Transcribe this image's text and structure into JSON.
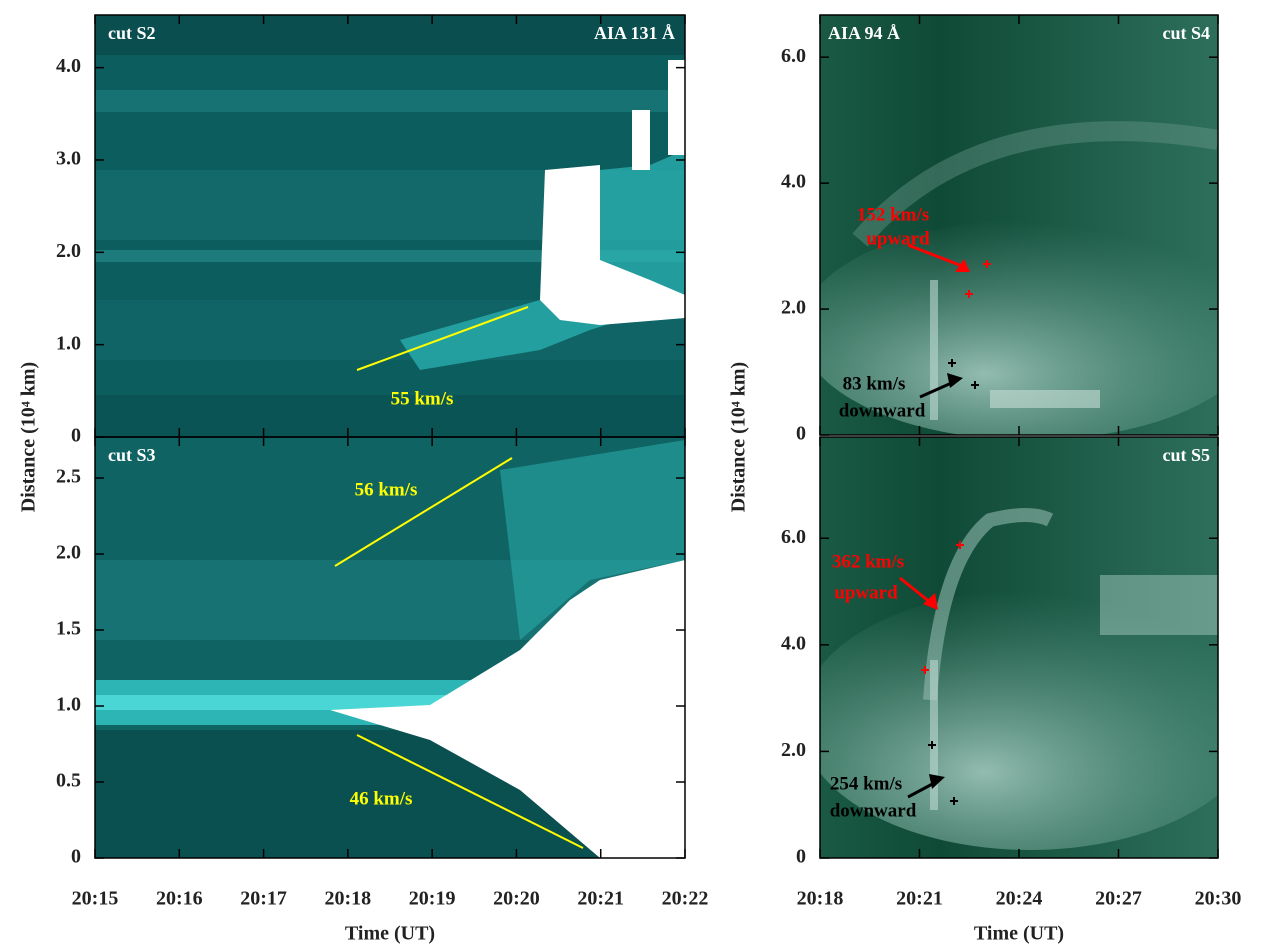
{
  "chart_data": [
    {
      "type": "heatmap",
      "panel_label": "cut S2",
      "channel": "AIA 131 Å",
      "ylim": [
        0,
        4.57
      ],
      "yticks": [
        0,
        {
          "value": 1,
          "label": "1.0"
        },
        {
          "value": 2,
          "label": "2.0"
        },
        {
          "value": 3,
          "label": "3.0"
        },
        {
          "value": 4,
          "label": "4.0"
        }
      ],
      "annotations": [
        {
          "text": "55 km/s",
          "color": "#ffff00"
        }
      ]
    },
    {
      "type": "heatmap",
      "panel_label": "cut S3",
      "y_label": "Distance (10⁴ km)",
      "x_label": "Time (UT)",
      "ylim": [
        0,
        2.77
      ],
      "yticks": [
        0,
        {
          "value": 0.5,
          "label": "0.5"
        },
        {
          "value": 1,
          "label": "1.0"
        },
        {
          "value": 1.5,
          "label": "1.5"
        },
        {
          "value": 2,
          "label": "2.0"
        },
        {
          "value": 2.5,
          "label": "2.5"
        }
      ],
      "xticks": [
        "20:15",
        "20:16",
        "20:17",
        "20:18",
        "20:19",
        "20:20",
        "20:21",
        "20:22"
      ],
      "annotations": [
        {
          "text": "56 km/s",
          "color": "#ffff00"
        },
        {
          "text": "46 km/s",
          "color": "#ffff00"
        }
      ]
    },
    {
      "type": "heatmap",
      "panel_label": "cut S4",
      "channel": "AIA 94 Å",
      "ylim": [
        0,
        6.67
      ],
      "yticks": [
        0,
        {
          "value": 2,
          "label": "2.0"
        },
        {
          "value": 4,
          "label": "4.0"
        },
        {
          "value": 6,
          "label": "6.0"
        }
      ],
      "annotations": [
        {
          "text": "152 km/s",
          "color": "#ff0000"
        },
        {
          "text": "upward",
          "color": "#ff0000"
        },
        {
          "text": "83 km/s",
          "color": "#000000"
        },
        {
          "text": "downward",
          "color": "#000000"
        }
      ]
    },
    {
      "type": "heatmap",
      "panel_label": "cut S5",
      "y_label": "Distance (10⁴ km)",
      "x_label": "Time (UT)",
      "ylim": [
        0,
        7.9
      ],
      "yticks": [
        0,
        {
          "value": 2,
          "label": "2.0"
        },
        {
          "value": 4,
          "label": "4.0"
        },
        {
          "value": 6,
          "label": "6.0"
        }
      ],
      "xticks": [
        "20:18",
        "20:21",
        "20:24",
        "20:27",
        "20:30"
      ],
      "annotations": [
        {
          "text": "362 km/s",
          "color": "#ff0000"
        },
        {
          "text": "upward",
          "color": "#ff0000"
        },
        {
          "text": "254 km/s",
          "color": "#000000"
        },
        {
          "text": "downward",
          "color": "#000000"
        }
      ]
    }
  ]
}
